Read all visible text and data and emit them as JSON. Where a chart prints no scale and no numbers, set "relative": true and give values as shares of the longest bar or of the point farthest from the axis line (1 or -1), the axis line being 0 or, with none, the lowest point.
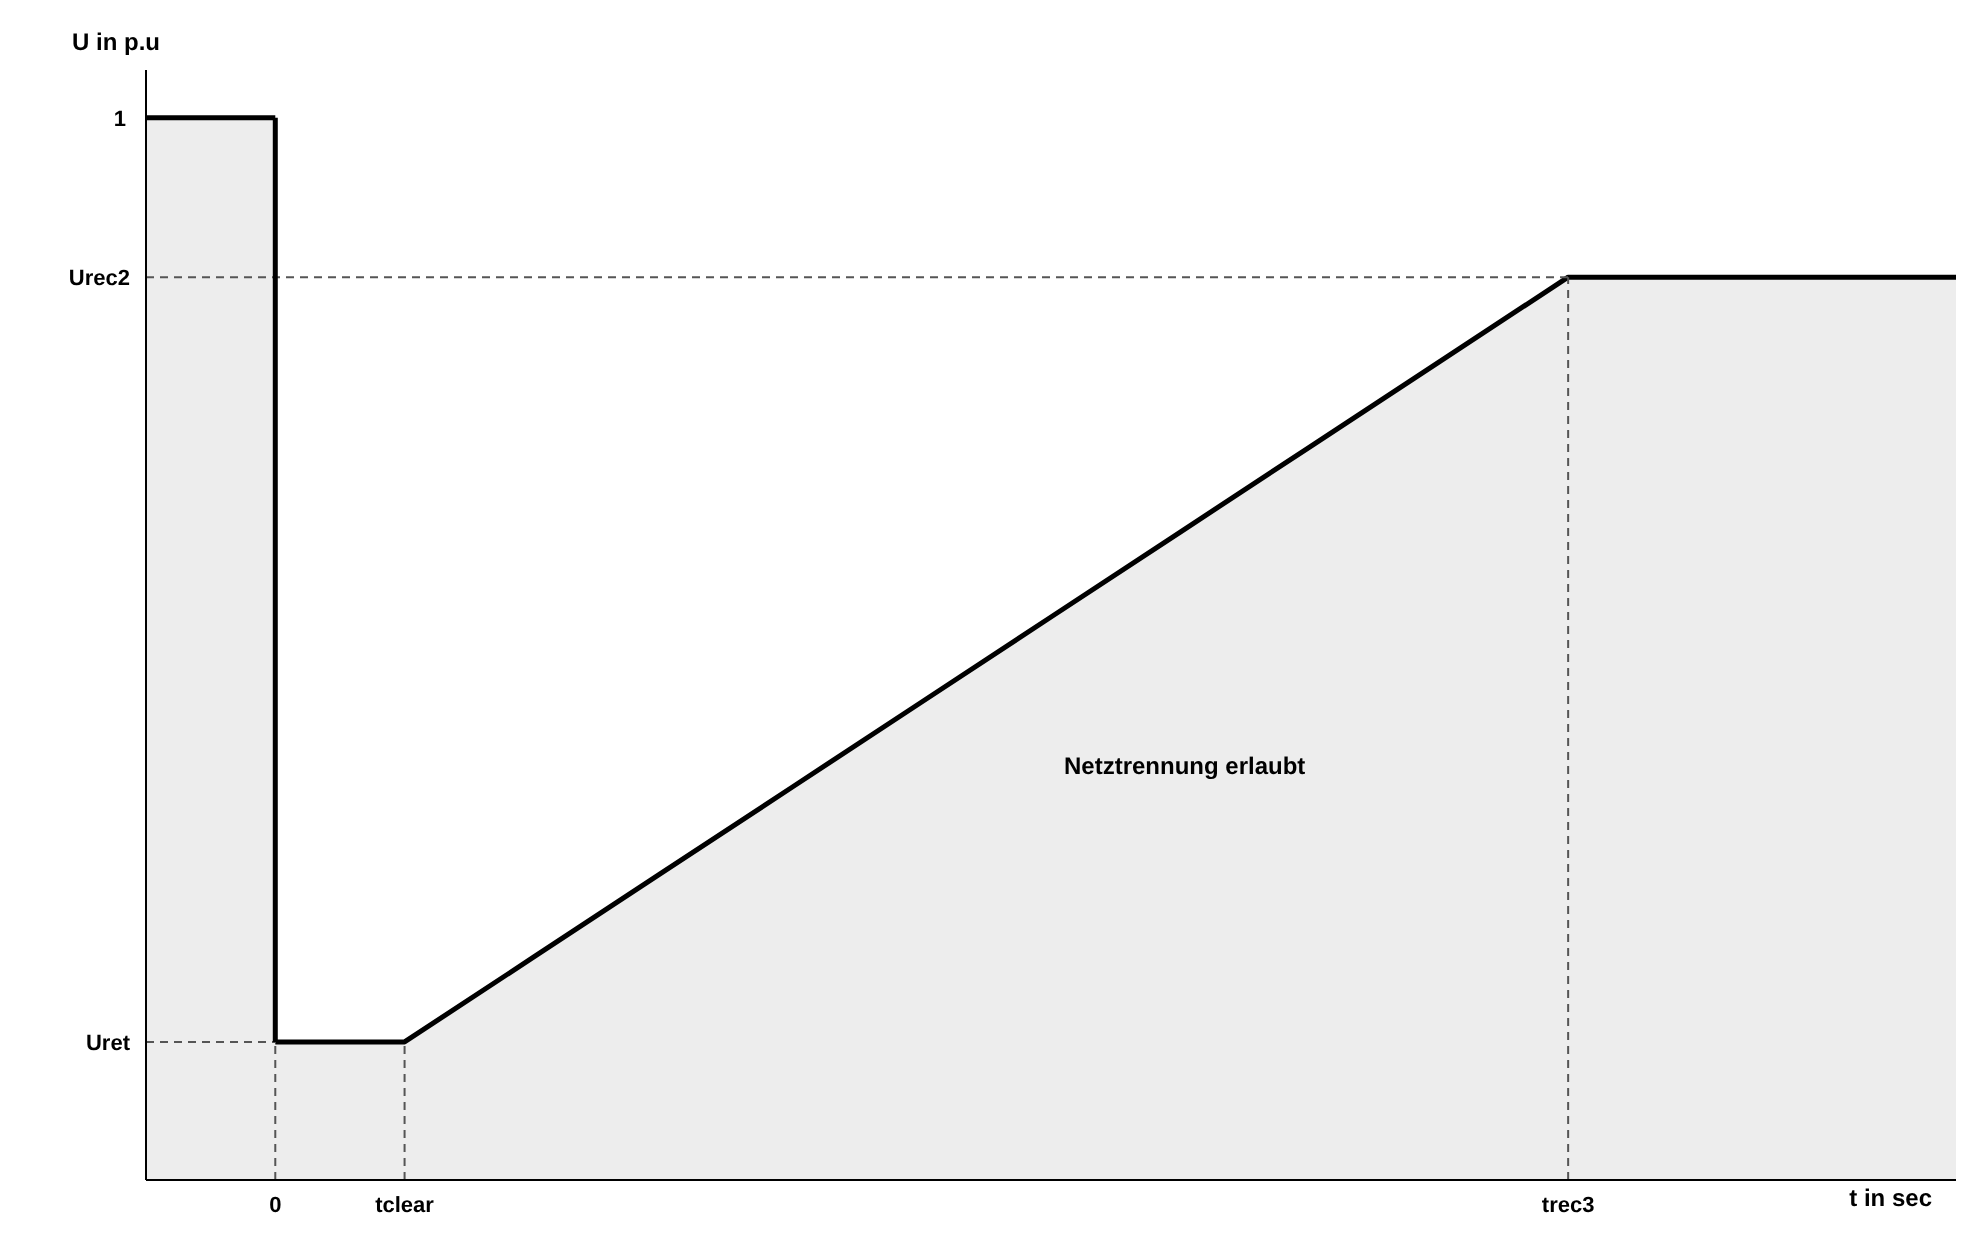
{
  "chart_data": {
    "type": "area",
    "relative": true,
    "xlabel": "t in sec",
    "ylabel": "U in p.u",
    "categories": [
      null,
      "0",
      "tclear",
      null,
      null,
      null,
      null,
      null,
      null,
      null,
      null,
      "trec3",
      null,
      null,
      null
    ],
    "series": [
      {
        "color": "#000000",
        "values": [
          1,
          1,
          null,
          null,
          null,
          null,
          null,
          null,
          null,
          null,
          null,
          null,
          null,
          null,
          null
        ]
      },
      {
        "color": "#000000",
        "values": [
          null,
          0.13,
          0.13,
          0.21,
          0.29,
          0.37,
          0.45,
          0.53,
          0.61,
          0.69,
          0.77,
          0.85,
          0.85,
          0.85,
          0.85
        ]
      }
    ],
    "ref_lines": [
      {
        "axis": "y",
        "value": 0.85,
        "label": "Urec2",
        "line_style": "dashed",
        "color": "#555555"
      },
      {
        "axis": "y",
        "value": 0.13,
        "label": "Uret",
        "line_style": "dashed",
        "color": "#555555"
      },
      {
        "axis": "x",
        "value": "0",
        "line_style": "solid",
        "color": "#000000"
      },
      {
        "axis": "x",
        "value": "0",
        "line_style": "dashed",
        "color": "#555555"
      },
      {
        "axis": "x",
        "value": "tclear",
        "line_style": "dashed",
        "color": "#555555"
      },
      {
        "axis": "x",
        "value": "trec3",
        "line_style": "dashed",
        "color": "#555555"
      }
    ],
    "annotations": [
      "1",
      "Netztrennung erlaubt"
    ],
    "grid": false,
    "legend": false,
    "line_style": "solid"
  }
}
